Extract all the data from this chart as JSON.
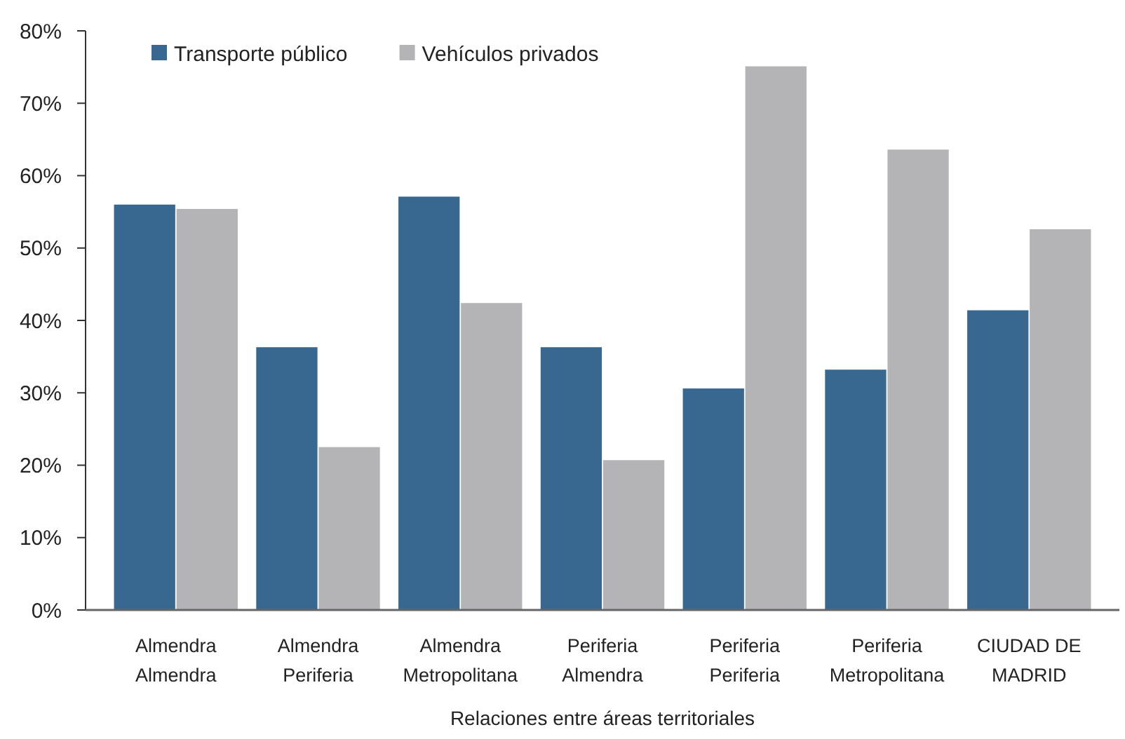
{
  "chart_data": {
    "type": "bar",
    "xlabel": "Relaciones entre áreas territoriales",
    "categories": [
      "Almendra\nAlmendra",
      "Almendra\nPeriferia",
      "Almendra\nMetropolitana",
      "Periferia\nAlmendra",
      "Periferia\nPeriferia",
      "Periferia\nMetropolitana",
      "CIUDAD DE\nMADRID"
    ],
    "series": [
      {
        "name": "Transporte público",
        "color": "#386890",
        "values": [
          56,
          36.3,
          57.1,
          36.3,
          30.6,
          33.2,
          41.4
        ]
      },
      {
        "name": "Vehículos privados",
        "color": "#b4b4b6",
        "values": [
          55.4,
          22.5,
          42.4,
          20.7,
          75.1,
          63.6,
          52.6
        ]
      }
    ],
    "ylim": [
      0,
      80
    ],
    "yticks": [
      {
        "value": 0,
        "label": "0%"
      },
      {
        "value": 10,
        "label": "10%"
      },
      {
        "value": 20,
        "label": "20%"
      },
      {
        "value": 30,
        "label": "30%"
      },
      {
        "value": 40,
        "label": "40%"
      },
      {
        "value": 50,
        "label": "50%"
      },
      {
        "value": 60,
        "label": "60%"
      },
      {
        "value": 70,
        "label": "70%"
      },
      {
        "value": 80,
        "label": "80%"
      }
    ],
    "grid": false,
    "legend": "top left"
  }
}
